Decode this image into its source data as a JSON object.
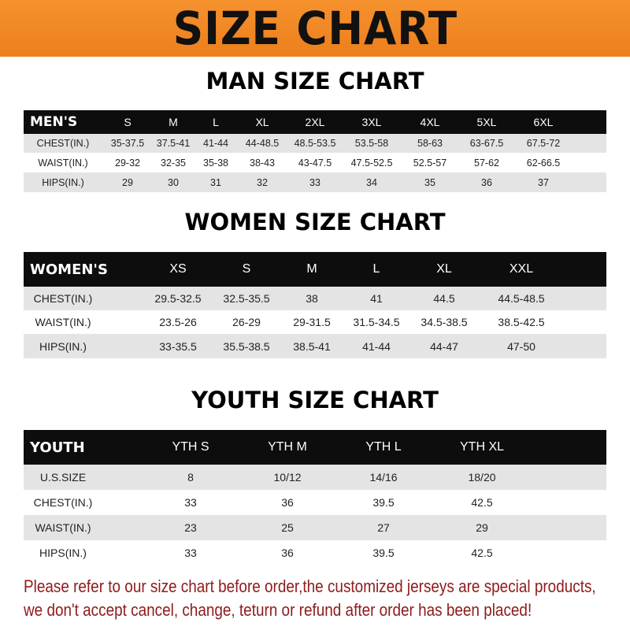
{
  "banner": {
    "title": "SIZE CHART",
    "color": "#f08a24"
  },
  "men": {
    "title": "MAN SIZE CHART",
    "header": [
      "MEN'S",
      "S",
      "M",
      "L",
      "XL",
      "2XL",
      "3XL",
      "4XL",
      "5XL",
      "6XL"
    ],
    "rows": [
      [
        "CHEST(IN.)",
        "35-37.5",
        "37.5-41",
        "41-44",
        "44-48.5",
        "48.5-53.5",
        "53.5-58",
        "58-63",
        "63-67.5",
        "67.5-72"
      ],
      [
        "WAIST(IN.)",
        "29-32",
        "32-35",
        "35-38",
        "38-43",
        "43-47.5",
        "47.5-52.5",
        "52.5-57",
        "57-62",
        "62-66.5"
      ],
      [
        "HIPS(IN.)",
        "29",
        "30",
        "31",
        "32",
        "33",
        "34",
        "35",
        "36",
        "37"
      ]
    ]
  },
  "women": {
    "title": "WOMEN SIZE CHART",
    "header": [
      "WOMEN'S",
      "XS",
      "S",
      "M",
      "L",
      "XL",
      "XXL"
    ],
    "rows": [
      [
        "CHEST(IN.)",
        "29.5-32.5",
        "32.5-35.5",
        "38",
        "41",
        "44.5",
        "44.5-48.5"
      ],
      [
        "WAIST(IN.)",
        "23.5-26",
        "26-29",
        "29-31.5",
        "31.5-34.5",
        "34.5-38.5",
        "38.5-42.5"
      ],
      [
        "HIPS(IN.)",
        "33-35.5",
        "35.5-38.5",
        "38.5-41",
        "41-44",
        "44-47",
        "47-50"
      ]
    ]
  },
  "youth": {
    "title": "YOUTH SIZE CHART",
    "header": [
      "YOUTH",
      "YTH S",
      "YTH M",
      "YTH L",
      "YTH XL"
    ],
    "rows": [
      [
        "U.S.SIZE",
        "8",
        "10/12",
        "14/16",
        "18/20"
      ],
      [
        "CHEST(IN.)",
        "33",
        "36",
        "39.5",
        "42.5"
      ],
      [
        "WAIST(IN.)",
        "23",
        "25",
        "27",
        "29"
      ],
      [
        "HIPS(IN.)",
        "33",
        "36",
        "39.5",
        "42.5"
      ]
    ]
  },
  "notice": {
    "line1": "Please refer to our size chart before order,the customized jerseys are special products,",
    "line2": "we don't accept cancel, change, teturn or refund after order has been placed!",
    "color": "#8e1b1b"
  }
}
